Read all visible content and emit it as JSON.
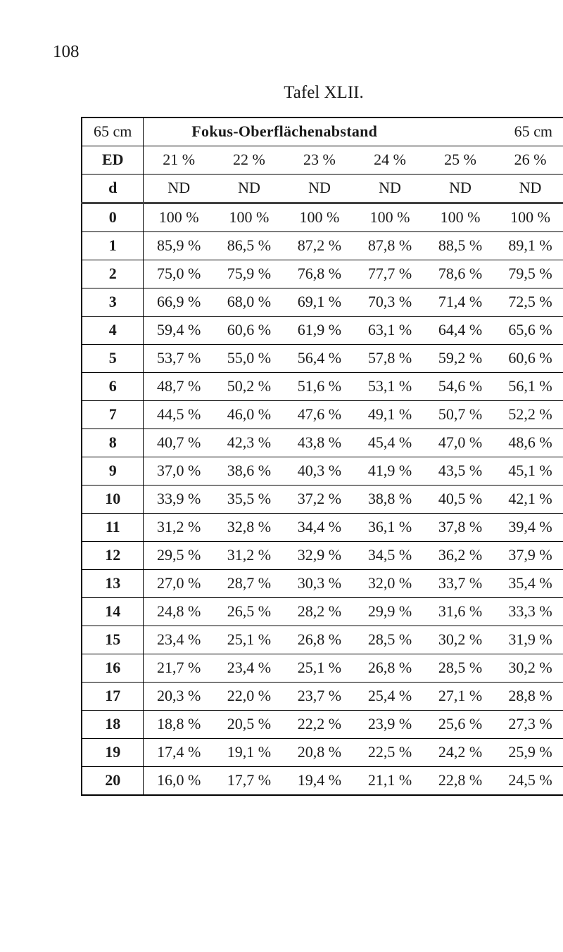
{
  "page_number": "108",
  "tafel_title": "Tafel XLII.",
  "header": {
    "left_cm": "65 cm",
    "center": "Fokus-Oberflächenabstand",
    "right_cm": "65 cm",
    "ed_label": "ED",
    "d_label": "d",
    "cols_pct": [
      "21 %",
      "22 %",
      "23 %",
      "24 %",
      "25 %",
      "26 %"
    ],
    "cols_nd": [
      "ND",
      "ND",
      "ND",
      "ND",
      "ND",
      "ND"
    ]
  },
  "rows": [
    {
      "n": "0",
      "v": [
        "100 %",
        "100 %",
        "100 %",
        "100 %",
        "100 %",
        "100 %"
      ]
    },
    {
      "n": "1",
      "v": [
        "85,9 %",
        "86,5 %",
        "87,2 %",
        "87,8 %",
        "88,5 %",
        "89,1 %"
      ]
    },
    {
      "n": "2",
      "v": [
        "75,0 %",
        "75,9 %",
        "76,8 %",
        "77,7 %",
        "78,6 %",
        "79,5 %"
      ]
    },
    {
      "n": "3",
      "v": [
        "66,9 %",
        "68,0 %",
        "69,1 %",
        "70,3 %",
        "71,4 %",
        "72,5 %"
      ]
    },
    {
      "n": "4",
      "v": [
        "59,4 %",
        "60,6 %",
        "61,9 %",
        "63,1 %",
        "64,4 %",
        "65,6 %"
      ]
    },
    {
      "n": "5",
      "v": [
        "53,7 %",
        "55,0 %",
        "56,4 %",
        "57,8 %",
        "59,2 %",
        "60,6 %"
      ]
    },
    {
      "n": "6",
      "v": [
        "48,7 %",
        "50,2 %",
        "51,6 %",
        "53,1 %",
        "54,6 %",
        "56,1 %"
      ]
    },
    {
      "n": "7",
      "v": [
        "44,5 %",
        "46,0 %",
        "47,6 %",
        "49,1 %",
        "50,7 %",
        "52,2 %"
      ]
    },
    {
      "n": "8",
      "v": [
        "40,7 %",
        "42,3 %",
        "43,8 %",
        "45,4 %",
        "47,0 %",
        "48,6 %"
      ]
    },
    {
      "n": "9",
      "v": [
        "37,0 %",
        "38,6 %",
        "40,3 %",
        "41,9 %",
        "43,5 %",
        "45,1 %"
      ]
    },
    {
      "n": "10",
      "v": [
        "33,9 %",
        "35,5 %",
        "37,2 %",
        "38,8 %",
        "40,5 %",
        "42,1 %"
      ]
    },
    {
      "n": "11",
      "v": [
        "31,2 %",
        "32,8 %",
        "34,4 %",
        "36,1 %",
        "37,8 %",
        "39,4 %"
      ]
    },
    {
      "n": "12",
      "v": [
        "29,5 %",
        "31,2 %",
        "32,9 %",
        "34,5 %",
        "36,2 %",
        "37,9 %"
      ]
    },
    {
      "n": "13",
      "v": [
        "27,0 %",
        "28,7 %",
        "30,3 %",
        "32,0 %",
        "33,7 %",
        "35,4 %"
      ]
    },
    {
      "n": "14",
      "v": [
        "24,8 %",
        "26,5 %",
        "28,2 %",
        "29,9 %",
        "31,6 %",
        "33,3 %"
      ]
    },
    {
      "n": "15",
      "v": [
        "23,4 %",
        "25,1 %",
        "26,8 %",
        "28,5 %",
        "30,2 %",
        "31,9 %"
      ]
    },
    {
      "n": "16",
      "v": [
        "21,7 %",
        "23,4 %",
        "25,1 %",
        "26,8 %",
        "28,5 %",
        "30,2 %"
      ]
    },
    {
      "n": "17",
      "v": [
        "20,3 %",
        "22,0 %",
        "23,7 %",
        "25,4 %",
        "27,1 %",
        "28,8 %"
      ]
    },
    {
      "n": "18",
      "v": [
        "18,8 %",
        "20,5 %",
        "22,2 %",
        "23,9 %",
        "25,6 %",
        "27,3 %"
      ]
    },
    {
      "n": "19",
      "v": [
        "17,4 %",
        "19,1 %",
        "20,8 %",
        "22,5 %",
        "24,2 %",
        "25,9 %"
      ]
    },
    {
      "n": "20",
      "v": [
        "16,0 %",
        "17,7 %",
        "19,4 %",
        "21,1 %",
        "22,8 %",
        "24,5 %"
      ]
    }
  ]
}
